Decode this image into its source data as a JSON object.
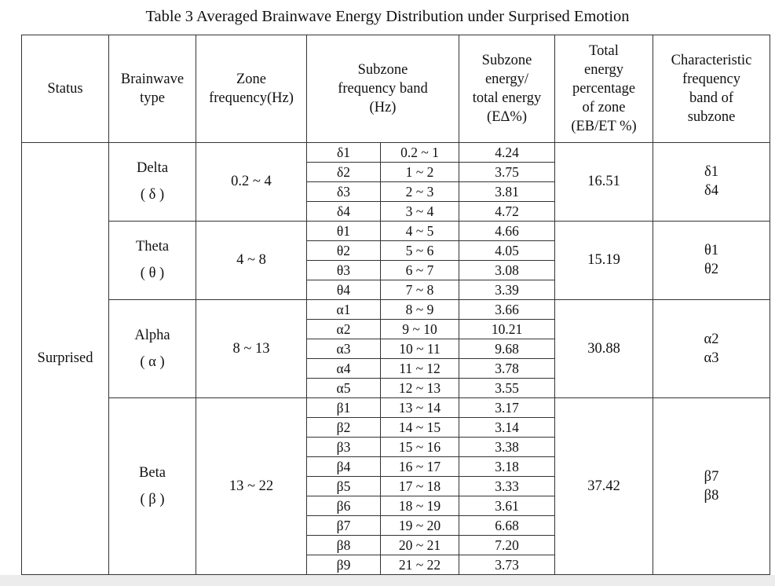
{
  "caption": "Table 3 Averaged Brainwave Energy Distribution under Surprised Emotion",
  "headers": {
    "status": [
      "Status"
    ],
    "brainwave_type": [
      "Brainwave",
      "type"
    ],
    "zone_frequency": [
      "Zone",
      "frequency(Hz)"
    ],
    "subzone_band": [
      "Subzone",
      "frequency band",
      "(Hz)"
    ],
    "subzone_energy": [
      "Subzone",
      "energy/",
      "total energy",
      "(EΔ%)"
    ],
    "total_energy": [
      "Total",
      "energy",
      "percentage",
      "of zone",
      "(EB/ET %)"
    ],
    "characteristic": [
      "Characteristic",
      "frequency",
      "band of",
      "subzone"
    ]
  },
  "status": "Surprised",
  "groups": [
    {
      "name": "Delta",
      "symbol": "( δ )",
      "zone_frequency": "0.2 ~ 4",
      "total_pct": "16.51",
      "characteristic": [
        "δ1",
        "δ4"
      ],
      "subzones": [
        {
          "sym": "δ1",
          "band": "0.2 ~ 1",
          "energy": "4.24"
        },
        {
          "sym": "δ2",
          "band": "1 ~ 2",
          "energy": "3.75"
        },
        {
          "sym": "δ3",
          "band": "2 ~ 3",
          "energy": "3.81"
        },
        {
          "sym": "δ4",
          "band": "3 ~ 4",
          "energy": "4.72"
        }
      ]
    },
    {
      "name": "Theta",
      "symbol": "( θ )",
      "zone_frequency": "4 ~ 8",
      "total_pct": "15.19",
      "characteristic": [
        "θ1",
        "θ2"
      ],
      "subzones": [
        {
          "sym": "θ1",
          "band": "4 ~ 5",
          "energy": "4.66"
        },
        {
          "sym": "θ2",
          "band": "5 ~ 6",
          "energy": "4.05"
        },
        {
          "sym": "θ3",
          "band": "6 ~ 7",
          "energy": "3.08"
        },
        {
          "sym": "θ4",
          "band": "7 ~ 8",
          "energy": "3.39"
        }
      ]
    },
    {
      "name": "Alpha",
      "symbol": "( α )",
      "zone_frequency": "8 ~ 13",
      "total_pct": "30.88",
      "characteristic": [
        "α2",
        "α3"
      ],
      "subzones": [
        {
          "sym": "α1",
          "band": "8 ~ 9",
          "energy": "3.66"
        },
        {
          "sym": "α2",
          "band": "9 ~ 10",
          "energy": "10.21"
        },
        {
          "sym": "α3",
          "band": "10 ~ 11",
          "energy": "9.68"
        },
        {
          "sym": "α4",
          "band": "11 ~ 12",
          "energy": "3.78"
        },
        {
          "sym": "α5",
          "band": "12 ~ 13",
          "energy": "3.55"
        }
      ]
    },
    {
      "name": "Beta",
      "symbol": "( β )",
      "zone_frequency": "13 ~ 22",
      "total_pct": "37.42",
      "characteristic": [
        "β7",
        "β8"
      ],
      "subzones": [
        {
          "sym": "β1",
          "band": "13 ~ 14",
          "energy": "3.17"
        },
        {
          "sym": "β2",
          "band": "14 ~ 15",
          "energy": "3.14"
        },
        {
          "sym": "β3",
          "band": "15 ~ 16",
          "energy": "3.38"
        },
        {
          "sym": "β4",
          "band": "16 ~ 17",
          "energy": "3.18"
        },
        {
          "sym": "β5",
          "band": "17 ~ 18",
          "energy": "3.33"
        },
        {
          "sym": "β6",
          "band": "18 ~ 19",
          "energy": "3.61"
        },
        {
          "sym": "β7",
          "band": "19 ~ 20",
          "energy": "6.68"
        },
        {
          "sym": "β8",
          "band": "20 ~ 21",
          "energy": "7.20"
        },
        {
          "sym": "β9",
          "band": "21 ~ 22",
          "energy": "3.73"
        }
      ]
    }
  ]
}
